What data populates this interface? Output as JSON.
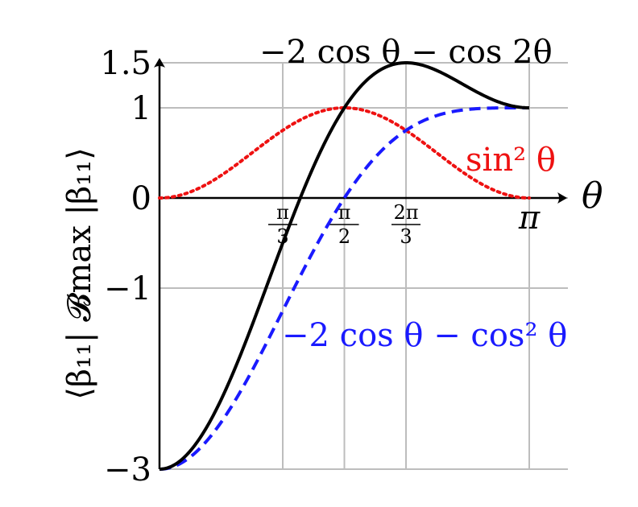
{
  "chart_data": {
    "type": "line",
    "ylabel": "⟨β₁₁| 𝓑max |β₁₁⟩",
    "xlabel": "θ",
    "xlim": [
      0,
      3.14159265
    ],
    "ylim": [
      -3,
      1.5
    ],
    "x_ticks": [
      {
        "value": 1.0471976,
        "num": "π",
        "den": "3"
      },
      {
        "value": 1.5707963,
        "num": "π",
        "den": "2"
      },
      {
        "value": 2.0943951,
        "num": "2π",
        "den": "3"
      },
      {
        "value": 3.1415927,
        "label": "π"
      }
    ],
    "y_ticks": [
      {
        "value": 1.5,
        "label": "1.5"
      },
      {
        "value": 1,
        "label": "1"
      },
      {
        "value": 0,
        "label": "0"
      },
      {
        "value": -1,
        "label": "−1"
      },
      {
        "value": -3,
        "label": "−3"
      }
    ],
    "y_axis_segments": [
      {
        "from": 1,
        "to": 1.5,
        "scale": "compressed"
      },
      {
        "from": -1,
        "to": 1,
        "scale": "linear"
      },
      {
        "from": -3,
        "to": -1,
        "scale": "compressed"
      }
    ],
    "grid": true,
    "series": [
      {
        "name": "−2 cos θ − cos 2θ",
        "color": "#000000",
        "style": "solid",
        "x": [
          0,
          0.1963,
          0.3927,
          0.589,
          0.7854,
          0.9817,
          1.0472,
          1.1781,
          1.3744,
          1.5708,
          1.7671,
          1.9635,
          2.0944,
          2.3562,
          2.5525,
          2.7489,
          2.9452,
          3.1416
        ],
        "y": [
          -3,
          -2.886,
          -2.555,
          -2.05,
          -1.414,
          -0.721,
          -0.5,
          0.0,
          0.591,
          1.0,
          1.317,
          1.48,
          1.5,
          1.414,
          1.293,
          1.141,
          1.037,
          1.0
        ]
      },
      {
        "name": "−2 cos θ − cos² θ",
        "color": "#1a1aff",
        "style": "dashed",
        "x": [
          0,
          0.1963,
          0.3927,
          0.589,
          0.7854,
          0.9817,
          1.0472,
          1.1781,
          1.3744,
          1.5708,
          1.7671,
          1.9635,
          2.0944,
          2.3562,
          2.5525,
          2.7489,
          2.9452,
          3.1416
        ],
        "y": [
          -3,
          -2.924,
          -2.701,
          -2.354,
          -1.914,
          -1.42,
          -1.25,
          -0.912,
          -0.434,
          0.0,
          0.352,
          0.619,
          0.75,
          0.914,
          0.969,
          0.993,
          0.999,
          1.0
        ]
      },
      {
        "name": "sin² θ",
        "color": "#ee1111",
        "style": "dotted",
        "x": [
          0,
          0.1963,
          0.3927,
          0.589,
          0.7854,
          0.9817,
          1.0472,
          1.1781,
          1.3744,
          1.5708,
          1.7671,
          1.9635,
          2.0944,
          2.3562,
          2.5525,
          2.7489,
          2.9452,
          3.1416
        ],
        "y": [
          0,
          0.038,
          0.146,
          0.309,
          0.5,
          0.691,
          0.75,
          0.854,
          0.962,
          1.0,
          0.962,
          0.854,
          0.75,
          0.5,
          0.309,
          0.146,
          0.038,
          0.0
        ]
      }
    ]
  }
}
